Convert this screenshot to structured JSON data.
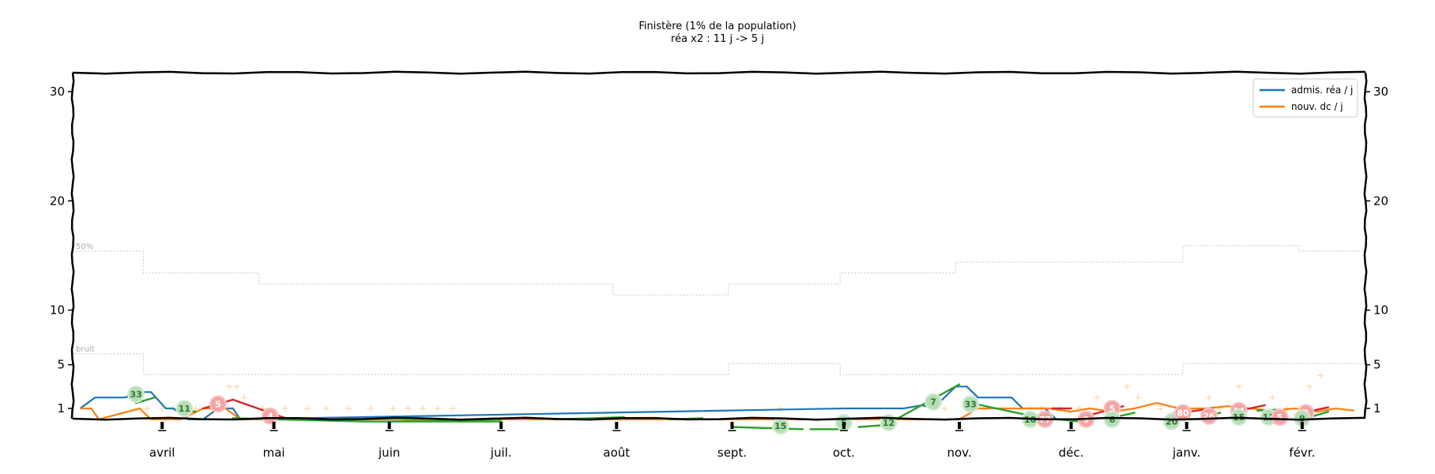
{
  "chart_data": {
    "type": "line",
    "title": "Finistère (1% de la population)",
    "subtitle": "réa x2 : 11 j -> 5 j",
    "xlabel": "",
    "ylabel": "",
    "xlim": [
      "2020-03-08",
      "2021-02-18"
    ],
    "y_ticks": [
      1,
      5,
      10,
      20,
      30
    ],
    "ylim": [
      0,
      32
    ],
    "grid": false,
    "legend_position": "top-right",
    "x_ticks": [
      {
        "date": "2020-04-01",
        "label": "avril"
      },
      {
        "date": "2020-05-01",
        "label": "mai"
      },
      {
        "date": "2020-06-01",
        "label": "juin"
      },
      {
        "date": "2020-07-01",
        "label": "juil."
      },
      {
        "date": "2020-08-01",
        "label": "août"
      },
      {
        "date": "2020-09-01",
        "label": "sept."
      },
      {
        "date": "2020-10-01",
        "label": "oct."
      },
      {
        "date": "2020-11-01",
        "label": "nov."
      },
      {
        "date": "2020-12-01",
        "label": "déc."
      },
      {
        "date": "2021-01-01",
        "label": "janv."
      },
      {
        "date": "2021-02-01",
        "label": "févr."
      }
    ],
    "series": [
      {
        "name": "admis. réa / j",
        "color": "#1f77b4",
        "x": [
          "2020-03-10",
          "2020-03-14",
          "2020-03-18",
          "2020-03-22",
          "2020-03-26",
          "2020-03-29",
          "2020-04-02",
          "2020-04-04",
          "2020-04-08",
          "2020-04-12",
          "2020-04-16",
          "2020-04-20",
          "2020-04-22",
          "2020-10-01",
          "2020-10-06",
          "2020-10-12",
          "2020-10-17",
          "2020-10-22",
          "2020-10-25",
          "2020-10-28",
          "2020-10-31",
          "2020-11-03",
          "2020-11-06",
          "2020-11-09",
          "2020-11-12",
          "2020-11-15",
          "2020-11-18",
          "2020-11-21",
          "2020-11-24",
          "2020-11-27",
          "2020-11-29"
        ],
        "values": [
          1,
          2,
          2,
          2,
          2.5,
          2.5,
          1,
          1,
          0,
          0,
          1,
          1,
          0,
          1,
          1,
          1,
          1,
          1.3,
          1,
          2,
          3,
          3,
          2,
          2,
          2,
          2,
          1,
          1,
          1,
          0,
          0
        ]
      },
      {
        "name": "nouv. dc / j",
        "color": "#ff7f0e",
        "x": [
          "2020-03-10",
          "2020-03-13",
          "2020-03-15",
          "2020-03-26",
          "2020-03-29",
          "2020-04-06",
          "2020-04-12",
          "2020-04-15",
          "2020-04-18",
          "2020-04-22",
          "2020-04-26",
          "2020-11-01",
          "2020-11-06",
          "2020-11-12",
          "2020-11-18",
          "2020-11-25",
          "2020-12-01",
          "2020-12-06",
          "2020-12-12",
          "2020-12-18",
          "2020-12-24",
          "2020-12-30",
          "2021-01-06",
          "2021-01-12",
          "2021-01-18",
          "2021-01-24",
          "2021-01-30",
          "2021-02-05",
          "2021-02-10",
          "2021-02-15"
        ],
        "values": [
          1,
          1,
          0,
          1,
          0,
          0,
          1,
          1,
          1,
          0,
          0,
          0,
          1,
          1,
          1,
          1,
          0.7,
          1,
          0.7,
          1,
          1.5,
          1,
          1,
          1.2,
          1,
          0.8,
          1,
          0.7,
          1,
          0.8
        ]
      }
    ],
    "trend_segments": [
      {
        "color": "#2ca02c",
        "x": [
          "2020-03-25",
          "2020-03-30"
        ],
        "y": [
          1.5,
          2.0
        ]
      },
      {
        "color": "#2ca02c",
        "x": [
          "2020-04-05",
          "2020-04-10"
        ],
        "y": [
          1.0,
          0.7
        ]
      },
      {
        "color": "#d62728",
        "x": [
          "2020-04-12",
          "2020-04-20"
        ],
        "y": [
          1.0,
          1.8
        ]
      },
      {
        "color": "#d62728",
        "x": [
          "2020-04-20",
          "2020-05-05"
        ],
        "y": [
          1.8,
          0
        ]
      },
      {
        "color": "#2ca02c",
        "x": [
          "2020-04-20",
          "2020-05-25"
        ],
        "y": [
          0.1,
          -0.2
        ]
      },
      {
        "color": "#2ca02c",
        "x": [
          "2020-05-25",
          "2020-07-01"
        ],
        "y": [
          -0.2,
          -0.2
        ]
      },
      {
        "color": "#2ca02c",
        "x": [
          "2020-06-01",
          "2020-07-01"
        ],
        "y": [
          -0.2,
          0
        ]
      },
      {
        "color": "#2ca02c",
        "x": [
          "2020-07-15",
          "2020-08-03"
        ],
        "y": [
          0,
          0.2
        ]
      },
      {
        "color": "#2ca02c",
        "x": [
          "2020-08-15",
          "2020-08-24"
        ],
        "y": [
          0,
          0.1
        ]
      },
      {
        "color": "#2ca02c",
        "x": [
          "2020-09-01",
          "2020-09-20"
        ],
        "y": [
          -0.7,
          -0.9
        ]
      },
      {
        "color": "#2ca02c",
        "x": [
          "2020-09-22",
          "2020-10-01"
        ],
        "y": [
          -0.9,
          -0.9
        ]
      },
      {
        "color": "#2ca02c",
        "x": [
          "2020-10-05",
          "2020-10-13"
        ],
        "y": [
          -0.7,
          -0.5
        ]
      },
      {
        "color": "#2ca02c",
        "x": [
          "2020-10-15",
          "2020-11-01"
        ],
        "y": [
          0,
          3.2
        ]
      },
      {
        "color": "#2ca02c",
        "x": [
          "2020-11-04",
          "2020-11-22"
        ],
        "y": [
          1.5,
          0.2
        ]
      },
      {
        "color": "#2ca02c",
        "x": [
          "2020-11-22",
          "2020-12-06"
        ],
        "y": [
          0.2,
          -0.3
        ]
      },
      {
        "color": "#d62728",
        "x": [
          "2020-11-26",
          "2020-12-01"
        ],
        "y": [
          1.0,
          1.0
        ]
      },
      {
        "color": "#d62728",
        "x": [
          "2020-12-06",
          "2020-12-15"
        ],
        "y": [
          0.4,
          1.2
        ]
      },
      {
        "color": "#2ca02c",
        "x": [
          "2020-12-10",
          "2020-12-18"
        ],
        "y": [
          0.0,
          0.6
        ]
      },
      {
        "color": "#d62728",
        "x": [
          "2020-12-28",
          "2021-01-08"
        ],
        "y": [
          0.5,
          1.0
        ]
      },
      {
        "color": "#2ca02c",
        "x": [
          "2021-01-05",
          "2021-01-10"
        ],
        "y": [
          0.2,
          0.6
        ]
      },
      {
        "color": "#d62728",
        "x": [
          "2021-01-14",
          "2021-01-22"
        ],
        "y": [
          0.7,
          1.3
        ]
      },
      {
        "color": "#2ca02c",
        "x": [
          "2021-01-20",
          "2021-01-26"
        ],
        "y": [
          0.8,
          0.9
        ]
      },
      {
        "color": "#d62728",
        "x": [
          "2021-02-01",
          "2021-02-08"
        ],
        "y": [
          0.6,
          1.1
        ]
      },
      {
        "color": "#2ca02c",
        "x": [
          "2021-02-04",
          "2021-02-08"
        ],
        "y": [
          0.3,
          0.7
        ]
      }
    ],
    "badges": [
      {
        "x": "2020-03-25",
        "y": 2.3,
        "label": "33",
        "kind": "green"
      },
      {
        "x": "2020-04-07",
        "y": 1.0,
        "label": "11",
        "kind": "green"
      },
      {
        "x": "2020-04-16",
        "y": 1.4,
        "label": "5",
        "kind": "red"
      },
      {
        "x": "2020-04-30",
        "y": 0.3,
        "label": "4",
        "kind": "red"
      },
      {
        "x": "2020-09-14",
        "y": -0.6,
        "label": "15",
        "kind": "green"
      },
      {
        "x": "2020-10-01",
        "y": -0.3,
        "label": "5",
        "kind": "green"
      },
      {
        "x": "2020-10-13",
        "y": -0.3,
        "label": "12",
        "kind": "green"
      },
      {
        "x": "2020-10-25",
        "y": 1.6,
        "label": "7",
        "kind": "green"
      },
      {
        "x": "2020-11-04",
        "y": 1.4,
        "label": "33",
        "kind": "green"
      },
      {
        "x": "2020-11-20",
        "y": 0.0,
        "label": "10",
        "kind": "green"
      },
      {
        "x": "2020-11-24",
        "y": 0.0,
        "label": "77",
        "kind": "red"
      },
      {
        "x": "2020-12-05",
        "y": 0.0,
        "label": "9",
        "kind": "red"
      },
      {
        "x": "2020-12-12",
        "y": 1.0,
        "label": "5",
        "kind": "red"
      },
      {
        "x": "2020-12-12",
        "y": 0.0,
        "label": "6",
        "kind": "green"
      },
      {
        "x": "2020-12-28",
        "y": -0.2,
        "label": "20",
        "kind": "green"
      },
      {
        "x": "2020-12-31",
        "y": 0.6,
        "label": "80",
        "kind": "red"
      },
      {
        "x": "2021-01-07",
        "y": 0.3,
        "label": "26",
        "kind": "red"
      },
      {
        "x": "2021-01-15",
        "y": 0.8,
        "label": "14",
        "kind": "red"
      },
      {
        "x": "2021-01-15",
        "y": 0.2,
        "label": "15",
        "kind": "green"
      },
      {
        "x": "2021-01-23",
        "y": 0.2,
        "label": "11",
        "kind": "green"
      },
      {
        "x": "2021-01-26",
        "y": 0.2,
        "label": "5",
        "kind": "red"
      },
      {
        "x": "2021-02-02",
        "y": 0.6,
        "label": "9",
        "kind": "red"
      },
      {
        "x": "2021-02-01",
        "y": 0.1,
        "label": "9",
        "kind": "green"
      }
    ],
    "threshold_lines": [
      {
        "label": "50%",
        "x": [
          "2020-03-08",
          "2020-03-27",
          "2020-03-27",
          "2020-04-27",
          "2020-04-27",
          "2020-07-31",
          "2020-07-31",
          "2020-08-31",
          "2020-08-31",
          "2020-09-30",
          "2020-09-30",
          "2020-10-31",
          "2020-10-31",
          "2020-12-31",
          "2020-12-31",
          "2021-01-31",
          "2021-01-31",
          "2021-02-18"
        ],
        "values": [
          15.4,
          15.4,
          13.4,
          13.4,
          12.4,
          12.4,
          11.4,
          11.4,
          12.4,
          12.4,
          13.4,
          13.4,
          14.4,
          14.4,
          15.9,
          15.9,
          15.4,
          15.4
        ]
      },
      {
        "label": "bruit",
        "x": [
          "2020-03-08",
          "2020-03-27",
          "2020-03-27",
          "2020-08-31",
          "2020-08-31",
          "2020-09-30",
          "2020-09-30",
          "2020-12-31",
          "2020-12-31",
          "2021-02-18"
        ],
        "values": [
          6.0,
          6.0,
          4.1,
          4.1,
          5.1,
          5.1,
          4.1,
          4.1,
          5.1,
          5.1
        ]
      }
    ],
    "background_markers": {
      "color": "#ffd8a8",
      "x": [
        "2020-03-28",
        "2020-04-01",
        "2020-04-04",
        "2020-04-10",
        "2020-04-14",
        "2020-04-19",
        "2020-04-21",
        "2020-04-23",
        "2020-04-28",
        "2020-05-04",
        "2020-05-10",
        "2020-05-15",
        "2020-05-21",
        "2020-05-27",
        "2020-06-02",
        "2020-06-06",
        "2020-06-10",
        "2020-06-14",
        "2020-06-18",
        "2020-09-14",
        "2020-10-28",
        "2020-11-03",
        "2020-11-05",
        "2020-11-20",
        "2020-11-23",
        "2020-11-26",
        "2020-11-28",
        "2020-12-03",
        "2020-12-08",
        "2020-12-12",
        "2020-12-16",
        "2020-12-19",
        "2020-12-25",
        "2020-12-31",
        "2021-01-07",
        "2021-01-10",
        "2021-01-15",
        "2021-01-24",
        "2021-01-28",
        "2021-02-03",
        "2021-02-06"
      ],
      "values": [
        1,
        1,
        1,
        1,
        1,
        3,
        3,
        2,
        1,
        1,
        1,
        1,
        1,
        1,
        1,
        1,
        1,
        1,
        1,
        1,
        1,
        3,
        2,
        1,
        1,
        1,
        1,
        1,
        2,
        1,
        3,
        2,
        1,
        1,
        2,
        1,
        3,
        2,
        1,
        3,
        4
      ]
    }
  },
  "legend": {
    "entries": [
      {
        "label": "admis. réa / j",
        "color": "#1f77b4"
      },
      {
        "label": "nouv. dc / j",
        "color": "#ff7f0e"
      }
    ]
  }
}
